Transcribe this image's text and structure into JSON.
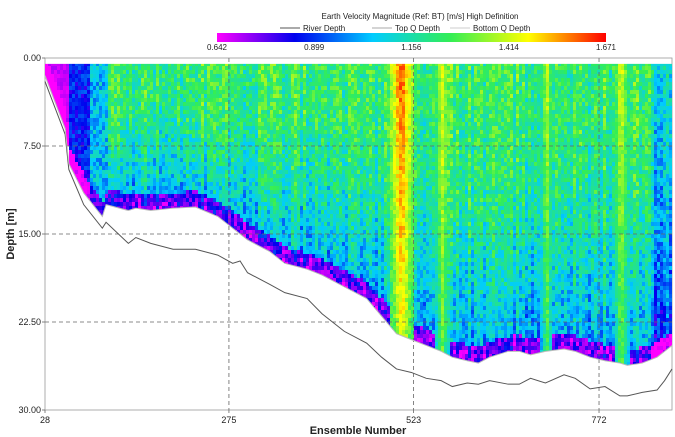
{
  "chart_data": {
    "type": "heatmap",
    "title": "Earth Velocity Magnitude (Ref: BT) [m/s] High Definition",
    "xlabel": "Ensemble Number",
    "ylabel": "Depth [m]",
    "xlim": [
      28,
      870
    ],
    "ylim": [
      0,
      30
    ],
    "y_inverted": true,
    "x_ticks": [
      "28",
      "275",
      "523",
      "772"
    ],
    "x_tick_values": [
      28,
      275,
      523,
      772
    ],
    "y_ticks": [
      "0.00",
      "7.50",
      "15.00",
      "22.50",
      "30.00"
    ],
    "y_tick_values": [
      0,
      7.5,
      15,
      22.5,
      30
    ],
    "grid": "dashed",
    "colorbar": {
      "tick_labels": [
        "0.642",
        "0.899",
        "1.156",
        "1.414",
        "1.671"
      ],
      "values": [
        0.642,
        0.899,
        1.156,
        1.414,
        1.671
      ],
      "colors": [
        "#ff00ff",
        "#0000ee",
        "#00ccff",
        "#33ee55",
        "#ffff00",
        "#ff0000"
      ]
    },
    "legend": [
      {
        "name": "River Depth",
        "color": "#555555"
      },
      {
        "name": "Top Q Depth",
        "color": "#aaaaaa"
      },
      {
        "name": "Bottom Q Depth",
        "color": "#cccccc"
      }
    ],
    "measured_top_depth": 0.5,
    "river_depth": {
      "x": [
        28,
        40,
        55,
        60,
        80,
        105,
        110,
        140,
        150,
        170,
        200,
        230,
        260,
        280,
        290,
        300,
        330,
        350,
        380,
        400,
        430,
        460,
        480,
        500,
        520,
        540,
        560,
        575,
        595,
        610,
        625,
        650,
        665,
        680,
        700,
        725,
        740,
        760,
        780,
        800,
        810,
        830,
        850,
        860,
        870
      ],
      "y": [
        2.0,
        4.0,
        6.5,
        9.5,
        12.5,
        14.5,
        14.0,
        15.8,
        15.3,
        15.8,
        16.3,
        16.3,
        16.8,
        17.5,
        17.3,
        18.3,
        19.3,
        20.0,
        20.5,
        21.8,
        23.3,
        24.3,
        25.5,
        26.5,
        26.8,
        27.3,
        27.5,
        28.0,
        27.7,
        27.8,
        27.5,
        27.8,
        27.8,
        27.3,
        27.7,
        27.0,
        27.3,
        28.2,
        28.0,
        28.8,
        28.8,
        28.5,
        28.3,
        27.5,
        26.5
      ]
    },
    "bottom_q_depth": {
      "x": [
        28,
        40,
        55,
        60,
        80,
        105,
        110,
        140,
        150,
        170,
        200,
        230,
        260,
        280,
        290,
        300,
        330,
        350,
        380,
        400,
        430,
        460,
        480,
        500,
        520,
        540,
        560,
        575,
        595,
        610,
        625,
        650,
        665,
        680,
        700,
        725,
        740,
        760,
        780,
        800,
        810,
        830,
        850,
        860,
        870
      ],
      "y": [
        1.5,
        3.5,
        6.0,
        9.0,
        11.5,
        13.5,
        12.5,
        13.0,
        12.8,
        13.0,
        12.8,
        12.7,
        13.5,
        14.5,
        15.0,
        15.5,
        16.5,
        17.5,
        18.0,
        18.5,
        19.5,
        20.5,
        22.0,
        23.5,
        24.0,
        24.5,
        25.0,
        25.5,
        25.8,
        26.0,
        25.5,
        25.0,
        25.0,
        25.3,
        25.0,
        24.8,
        25.0,
        25.5,
        25.8,
        26.0,
        26.2,
        26.0,
        25.5,
        25.0,
        24.5
      ]
    },
    "high_velocity_bands": [
      {
        "x_center": 505,
        "width": 15,
        "value": 1.62
      },
      {
        "x_center": 560,
        "width": 10,
        "value": 1.45
      },
      {
        "x_center": 700,
        "width": 8,
        "value": 1.42
      },
      {
        "x_center": 800,
        "width": 10,
        "value": 1.45
      }
    ]
  }
}
